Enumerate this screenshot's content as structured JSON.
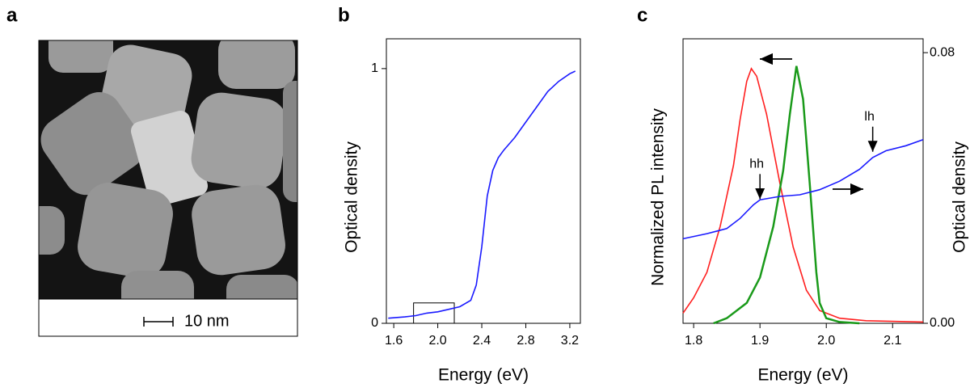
{
  "chart_data": [
    {
      "type": "image",
      "panel_label": "a",
      "scale_bar_label": "10 nm"
    },
    {
      "type": "line",
      "panel_label": "b",
      "xlabel": "Energy (eV)",
      "ylabel": "Optical density",
      "xlim": [
        1.533,
        3.296
      ],
      "ylim": [
        0,
        1.117
      ],
      "xticks": [
        1.6,
        {
          "value": 2,
          "label": "2.0"
        },
        2.4,
        2.8,
        3.2
      ],
      "yticks": [
        0,
        1
      ],
      "highlight_box": {
        "x": [
          1.78,
          2.15
        ],
        "y": [
          0,
          0.08
        ]
      },
      "series": [
        {
          "color": "#1a1aff",
          "x": [
            1.55,
            1.7,
            1.8,
            1.9,
            2.0,
            2.1,
            2.2,
            2.3,
            2.35,
            2.4,
            2.45,
            2.5,
            2.55,
            2.6,
            2.7,
            2.8,
            2.9,
            3.0,
            3.1,
            3.2,
            3.25
          ],
          "values": [
            0.02,
            0.025,
            0.03,
            0.04,
            0.045,
            0.055,
            0.065,
            0.09,
            0.15,
            0.3,
            0.5,
            0.6,
            0.65,
            0.68,
            0.73,
            0.79,
            0.85,
            0.91,
            0.95,
            0.98,
            0.99
          ]
        }
      ]
    },
    {
      "type": "line",
      "panel_label": "c",
      "xlabel": "Energy (eV)",
      "ylabel": "Normalized PL intensity",
      "y2label": "Optical density",
      "xlim": [
        1.784,
        2.146
      ],
      "ylim": [
        0,
        1.117
      ],
      "y2lim": [
        0,
        0.0841
      ],
      "xticks": [
        1.8,
        1.9,
        {
          "value": 2,
          "label": "2.0"
        },
        2.1
      ],
      "y2ticks": [
        {
          "value": 0,
          "label": "0.00"
        },
        0.08
      ],
      "annotations": [
        {
          "text": "hh",
          "x": 1.9,
          "y": 0.036
        },
        {
          "text": "lh",
          "x": 2.07,
          "y": 0.05
        }
      ],
      "series": [
        {
          "color": "#ff2020",
          "x": [
            1.784,
            1.8,
            1.82,
            1.84,
            1.86,
            1.87,
            1.88,
            1.887,
            1.895,
            1.91,
            1.93,
            1.95,
            1.97,
            1.99,
            2.02,
            2.06,
            2.146
          ],
          "values": [
            0.04,
            0.1,
            0.2,
            0.38,
            0.62,
            0.8,
            0.95,
            1.0,
            0.97,
            0.82,
            0.55,
            0.3,
            0.13,
            0.05,
            0.02,
            0.01,
            0.005
          ]
        },
        {
          "color": "#1a9a1a",
          "x": [
            1.83,
            1.85,
            1.88,
            1.9,
            1.92,
            1.935,
            1.945,
            1.955,
            1.965,
            1.975,
            1.985,
            1.99,
            2.0,
            2.02,
            2.05
          ],
          "values": [
            0,
            0.02,
            0.08,
            0.18,
            0.38,
            0.6,
            0.82,
            1.01,
            0.88,
            0.55,
            0.2,
            0.08,
            0.02,
            0.005,
            0
          ]
        },
        {
          "color": "#1a1aff",
          "axis": "y2",
          "x": [
            1.784,
            1.82,
            1.85,
            1.87,
            1.89,
            1.9,
            1.93,
            1.96,
            1.99,
            2.02,
            2.05,
            2.07,
            2.09,
            2.12,
            2.146
          ],
          "values": [
            0.025,
            0.0265,
            0.028,
            0.031,
            0.035,
            0.0365,
            0.0375,
            0.038,
            0.0395,
            0.042,
            0.0455,
            0.049,
            0.051,
            0.0525,
            0.0543
          ]
        }
      ]
    }
  ]
}
